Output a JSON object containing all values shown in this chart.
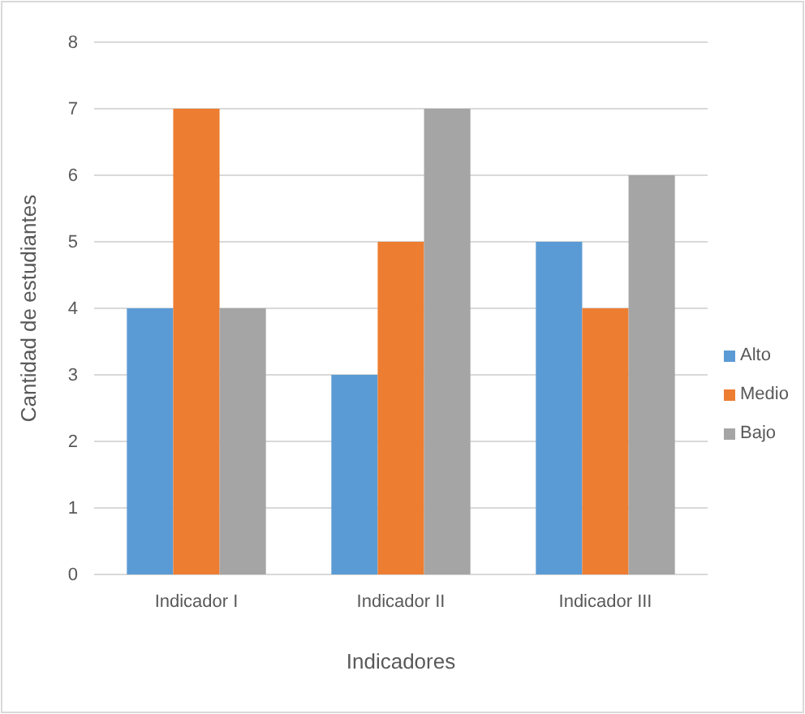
{
  "chart_data": {
    "type": "bar",
    "xlabel": "Indicadores",
    "ylabel": "Cantidad de estudiantes",
    "categories": [
      "Indicador I",
      "Indicador II",
      "Indicador III"
    ],
    "series": [
      {
        "name": "Alto",
        "color": "#5b9bd5",
        "values": [
          4,
          3,
          5
        ]
      },
      {
        "name": "Medio",
        "color": "#ed7d31",
        "values": [
          7,
          5,
          4
        ]
      },
      {
        "name": "Bajo",
        "color": "#a5a5a5",
        "values": [
          4,
          7,
          6
        ]
      }
    ],
    "ylim": [
      0,
      8
    ],
    "yticks": [
      0,
      1,
      2,
      3,
      4,
      5,
      6,
      7,
      8
    ],
    "grid": "y",
    "legend": "right"
  }
}
